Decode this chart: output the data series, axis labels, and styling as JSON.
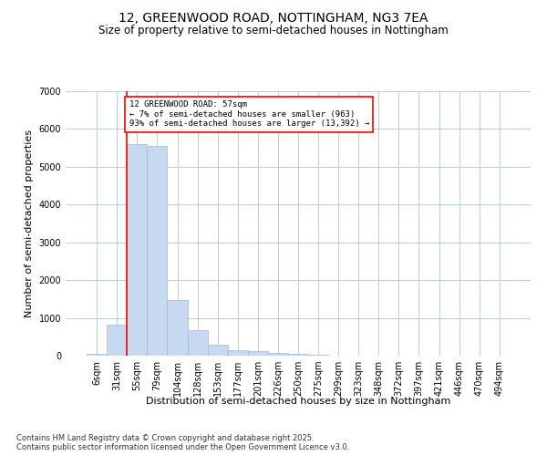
{
  "title1": "12, GREENWOOD ROAD, NOTTINGHAM, NG3 7EA",
  "title2": "Size of property relative to semi-detached houses in Nottingham",
  "xlabel": "Distribution of semi-detached houses by size in Nottingham",
  "ylabel": "Number of semi-detached properties",
  "categories": [
    "6sqm",
    "31sqm",
    "55sqm",
    "79sqm",
    "104sqm",
    "128sqm",
    "153sqm",
    "177sqm",
    "201sqm",
    "226sqm",
    "250sqm",
    "275sqm",
    "299sqm",
    "323sqm",
    "348sqm",
    "372sqm",
    "397sqm",
    "421sqm",
    "446sqm",
    "470sqm",
    "494sqm"
  ],
  "values": [
    50,
    820,
    5600,
    5550,
    1480,
    680,
    280,
    155,
    115,
    75,
    40,
    18,
    8,
    4,
    2,
    1,
    0,
    0,
    0,
    0,
    0
  ],
  "bar_color": "#c6d9f0",
  "bar_edge_color": "#a0b8d8",
  "property_line_index": 2,
  "property_line_color": "red",
  "annotation_text": "12 GREENWOOD ROAD: 57sqm\n← 7% of semi-detached houses are smaller (963)\n93% of semi-detached houses are larger (13,392) →",
  "annotation_box_color": "white",
  "annotation_box_edge_color": "red",
  "ylim": [
    0,
    7000
  ],
  "yticks": [
    0,
    1000,
    2000,
    3000,
    4000,
    5000,
    6000,
    7000
  ],
  "background_color": "#ffffff",
  "grid_color": "#b8cce4",
  "footer_line1": "Contains HM Land Registry data © Crown copyright and database right 2025.",
  "footer_line2": "Contains public sector information licensed under the Open Government Licence v3.0.",
  "title_fontsize": 10,
  "subtitle_fontsize": 8.5,
  "axis_label_fontsize": 8,
  "tick_fontsize": 7,
  "footer_fontsize": 6
}
